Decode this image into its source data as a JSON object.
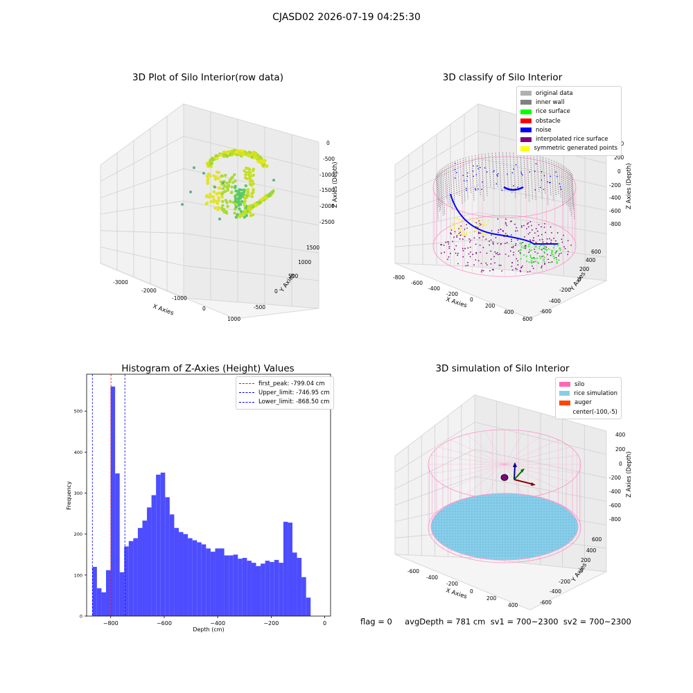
{
  "suptitle": "CJASD02 2026-07-19 04:25:30",
  "footer": "flag = 0     avgDepth = 781 cm  sv1 = 700~2300  sv2 = 700~2300",
  "chart_data": [
    {
      "type": "scatter",
      "title": "3D Plot of Silo Interior(row data)",
      "xlabel": "X Axies",
      "ylabel": "Y Axies",
      "zlabel": "Z Axies (Depth)",
      "xticks": [
        "-3000",
        "-2000",
        "-1000",
        "0",
        "1000"
      ],
      "yticks": [
        "-500",
        "0",
        "500",
        "1000",
        "1500"
      ],
      "zticks": [
        "0",
        "-500",
        "-1000",
        "-1500",
        "-2000",
        "-2500"
      ]
    },
    {
      "type": "scatter",
      "title": "3D classify of Silo Interior",
      "xlabel": "X Axies",
      "ylabel": "Y Axies",
      "zlabel": "Z Axies (Depth)",
      "xticks": [
        "-800",
        "-600",
        "-400",
        "-200",
        "0",
        "200",
        "400",
        "600"
      ],
      "yticks": [
        "-600",
        "-400",
        "-200",
        "0",
        "200",
        "400",
        "600"
      ],
      "zticks": [
        "200",
        "0",
        "-200",
        "-400",
        "-600",
        "-800"
      ],
      "legend": [
        {
          "label": "original data",
          "color": "#b0b0b0"
        },
        {
          "label": "inner wall",
          "color": "#808080"
        },
        {
          "label": "rice surface",
          "color": "#00ff00"
        },
        {
          "label": "obstacle",
          "color": "#ff0000"
        },
        {
          "label": "noise",
          "color": "#0000ff"
        },
        {
          "label": "interpolated rice surface",
          "color": "#800080"
        },
        {
          "label": "symmetric generated points",
          "color": "#ffff00"
        }
      ]
    },
    {
      "type": "bar",
      "title": "Histogram of Z-Axies (Height) Values",
      "xlabel": "Depth (cm)",
      "ylabel": "Frequency",
      "xlim": [
        -890,
        22
      ],
      "ylim": [
        0,
        590
      ],
      "xticks": [
        -800,
        -600,
        -400,
        -200,
        0
      ],
      "yticks": [
        0,
        100,
        200,
        300,
        400,
        500
      ],
      "bin_start": -868.5,
      "bin_width": 17.0,
      "values": [
        120,
        68,
        58,
        112,
        560,
        348,
        107,
        170,
        183,
        190,
        215,
        233,
        265,
        295,
        345,
        350,
        290,
        248,
        215,
        205,
        200,
        190,
        185,
        180,
        175,
        165,
        157,
        165,
        165,
        148,
        148,
        150,
        140,
        142,
        135,
        130,
        122,
        128,
        135,
        132,
        137,
        130,
        230,
        228,
        155,
        142,
        95,
        45
      ],
      "bar_color": "#4d4dff",
      "vlines": [
        {
          "label": "first_peak: -799.04 cm",
          "x": -799.04,
          "color": "#ff0000"
        },
        {
          "label": "Upper_limit: -746.95 cm",
          "x": -746.95,
          "color": "#0000ff"
        },
        {
          "label": "Lower_limit: -868.50 cm",
          "x": -868.5,
          "color": "#0000ff"
        }
      ]
    },
    {
      "type": "scatter",
      "title": "3D simulation of Silo Interior",
      "xlabel": "X Axies",
      "ylabel": "Y Axies",
      "zlabel": "Z Axies (Depth)",
      "xticks": [
        "-600",
        "-400",
        "-200",
        "0",
        "200",
        "400"
      ],
      "yticks": [
        "-600",
        "-400",
        "-200",
        "0",
        "200",
        "400",
        "600"
      ],
      "zticks": [
        "400",
        "200",
        "0",
        "-200",
        "-400",
        "-600",
        "-800"
      ],
      "legend": [
        {
          "label": "silo",
          "color": "#ff69b4"
        },
        {
          "label": "rice simulation",
          "color": "#87ceeb"
        },
        {
          "label": "auger",
          "color": "#ff4500"
        },
        {
          "label": "center(-100,-5)",
          "color": ""
        }
      ]
    }
  ]
}
